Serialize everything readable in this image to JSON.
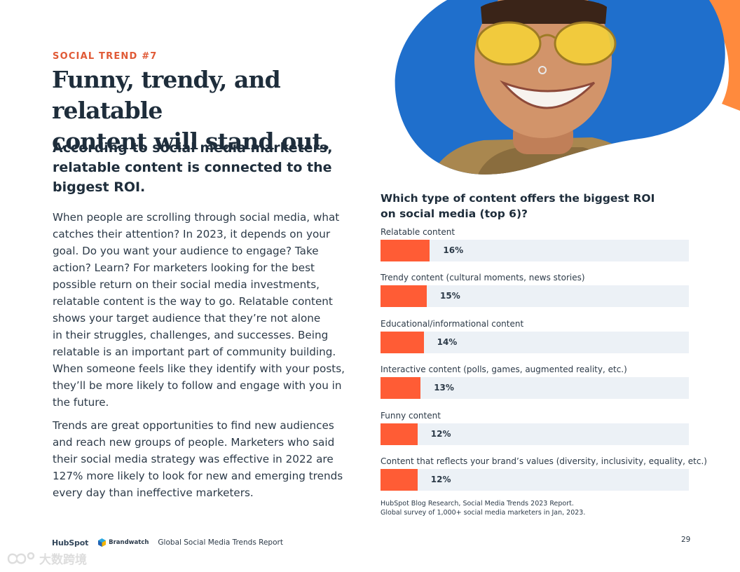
{
  "header": {
    "kicker": "SOCIAL TREND #7",
    "headline_line1": "Funny, trendy, and relatable",
    "headline_line2": "content will stand out.",
    "subhead_line1": "According to social media marketers,",
    "subhead_line2": "relatable content is connected to the",
    "subhead_line3": "biggest ROI."
  },
  "body": {
    "para1": [
      "When people are scrolling through social media, what",
      "catches their attention? In 2023, it depends on your",
      "goal. Do you want your audience to engage? Take",
      "action? Learn? For marketers looking for the best",
      "possible return on their social media investments,",
      "relatable content is the way to go. Relatable content",
      "shows your target audience that they’re not alone",
      "in their struggles, challenges, and successes. Being",
      "relatable is an important part of community building.",
      "When someone feels like they identify with your posts,",
      "they’ll be more likely to follow and engage with you in",
      "the future."
    ],
    "para2": [
      "Trends are great opportunities to find new audiences",
      "and reach new groups of people. Marketers who said",
      "their social media strategy was effective in 2022 are",
      "127% more likely to look for new and emerging trends",
      "every day than ineffective marketers."
    ]
  },
  "chart_data": {
    "type": "bar",
    "title": "Which type of content offers the biggest ROI on social media (top 6)?",
    "title_line1": "Which type of content offers the biggest ROI",
    "title_line2": "on social media (top 6)?",
    "categories": [
      "Relatable content",
      "Trendy content (cultural moments, news stories)",
      "Educational/informational content",
      "Interactive content (polls, games, augmented reality, etc.)",
      "Funny content",
      "Content that reflects your brand’s values (diversity, inclusivity, equality, etc.)"
    ],
    "values": [
      16,
      15,
      14,
      13,
      12,
      12
    ],
    "value_labels": [
      "16%",
      "15%",
      "14%",
      "13%",
      "12%",
      "12%"
    ],
    "xlim": [
      0,
      100
    ],
    "orientation": "horizontal",
    "bar_color": "#ff5c35",
    "track_color": "#ecf1f6",
    "grid": false
  },
  "source": {
    "line1": "HubSpot Blog Research, Social Media Trends 2023 Report.",
    "line2": "Global survey of 1,000+ social media marketers in Jan, 2023."
  },
  "footer": {
    "hubspot_logo": "HubSpot",
    "brandwatch_logo": "Brandwatch",
    "report_title": "Global Social Media Trends Report",
    "page_number": "29"
  },
  "watermark": {
    "text": "大数跨境"
  },
  "colors": {
    "accent_orange": "#ff5c35",
    "kicker_orange": "#e05a36",
    "navy_text": "#1e2d3b",
    "photo_blue": "#1f6fcc"
  }
}
